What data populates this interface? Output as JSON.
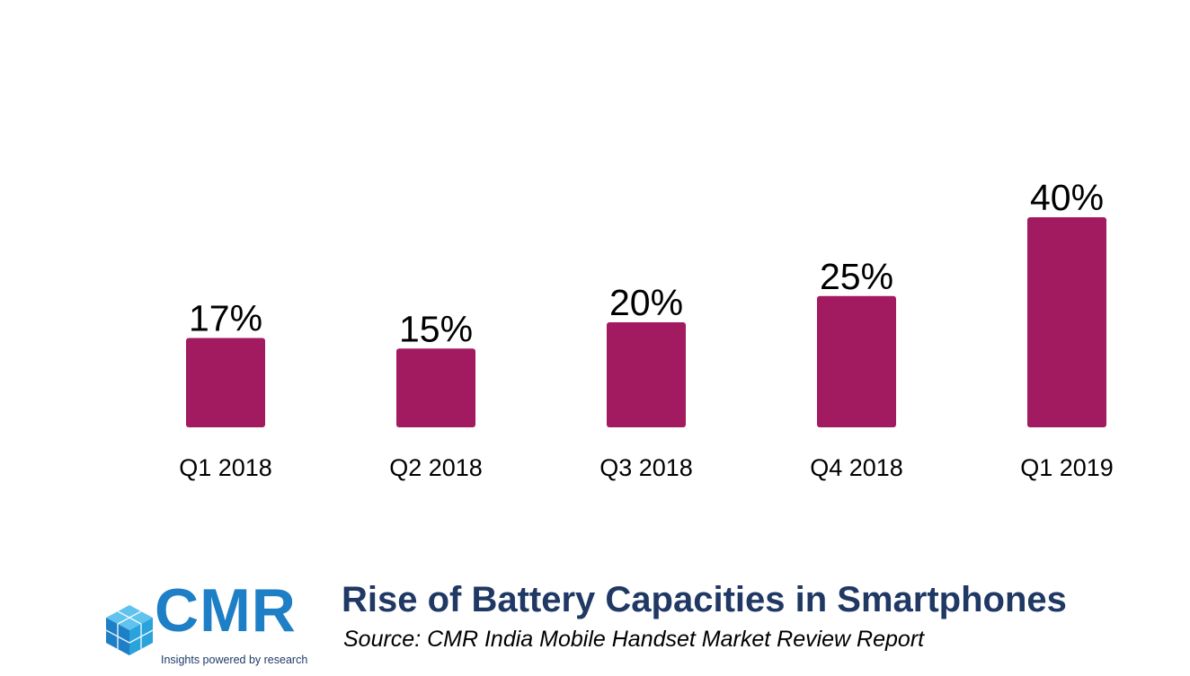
{
  "chart_data": {
    "type": "bar",
    "categories": [
      "Q1 2018",
      "Q2 2018",
      "Q3 2018",
      "Q4 2018",
      "Q1 2019"
    ],
    "values": [
      17,
      15,
      20,
      25,
      40
    ],
    "data_labels": [
      "17%",
      "15%",
      "20%",
      "25%",
      "40%"
    ],
    "title": "Rise of Battery Capacities in Smartphones",
    "source": "Source:  CMR India Mobile Handset Market Review Report",
    "xlabel": "",
    "ylabel": "",
    "ylim": [
      0,
      40
    ],
    "grid": false,
    "legend": "none",
    "bar_color": "#a21a5f"
  },
  "branding": {
    "logo_text": "CMR",
    "tagline": "Insights powered by research",
    "logo_color": "#1e7fc6",
    "title_color": "#1f3864"
  }
}
